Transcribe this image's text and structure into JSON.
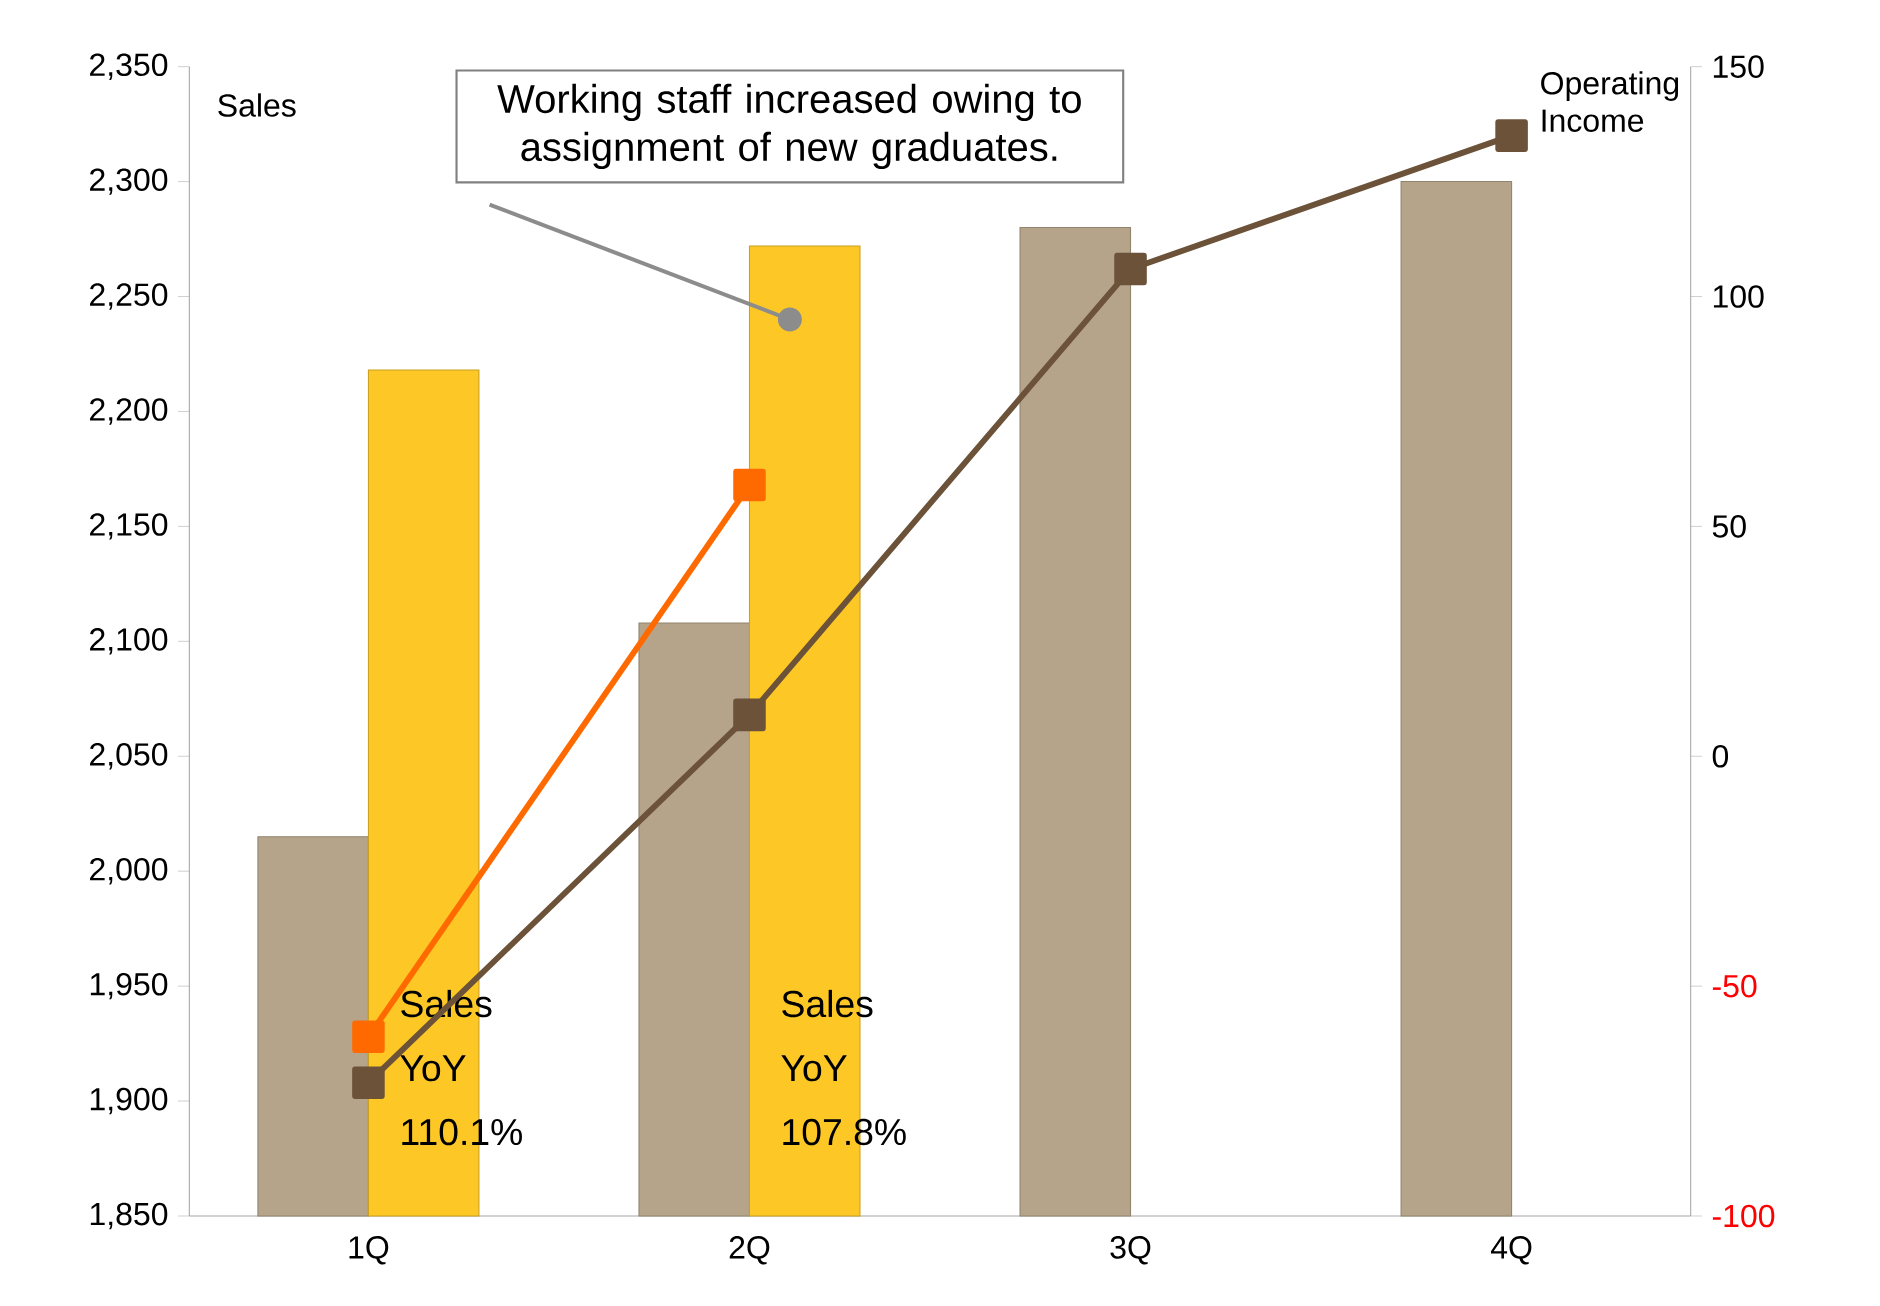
{
  "chart_data": {
    "type": "bar",
    "ylabel": "Sales",
    "y2label": "Operating Income",
    "categories": [
      "1Q",
      "2Q",
      "3Q",
      "4Q"
    ],
    "series": [
      {
        "color": "#b5a48a",
        "values": [
          2015,
          2108,
          2280,
          2300
        ]
      },
      {
        "color": "#fdc826",
        "values": [
          2218,
          2272,
          null,
          null
        ]
      },
      {
        "type": "line",
        "axis": "y2",
        "color": "#ff6a00",
        "values": [
          -61,
          59,
          null,
          null
        ]
      },
      {
        "type": "line",
        "axis": "y2",
        "color": "#6b5239",
        "values": [
          -71,
          9,
          106,
          135
        ]
      }
    ],
    "marker": "square",
    "ylim": [
      1850,
      2350
    ],
    "yticks": [
      {
        "value": 1850,
        "label": "1,850"
      },
      {
        "value": 1900,
        "label": "1,900"
      },
      {
        "value": 1950,
        "label": "1,950"
      },
      {
        "value": 2000,
        "label": "2,000"
      },
      {
        "value": 2050,
        "label": "2,050"
      },
      {
        "value": 2100,
        "label": "2,100"
      },
      {
        "value": 2150,
        "label": "2,150"
      },
      {
        "value": 2200,
        "label": "2,200"
      },
      {
        "value": 2250,
        "label": "2,250"
      },
      {
        "value": 2300,
        "label": "2,300"
      },
      {
        "value": 2350,
        "label": "2,350"
      }
    ],
    "y2lim": [
      -100,
      150
    ],
    "y2ticks": [
      -100,
      -50,
      0,
      50,
      100,
      150
    ],
    "annotations": [
      "Working staff increased owing to assignment of new graduates.",
      {
        "text": "Sales YoY 110.1%",
        "x": "1Q"
      },
      {
        "text": "Sales YoY 107.8%",
        "x": "2Q"
      }
    ]
  }
}
